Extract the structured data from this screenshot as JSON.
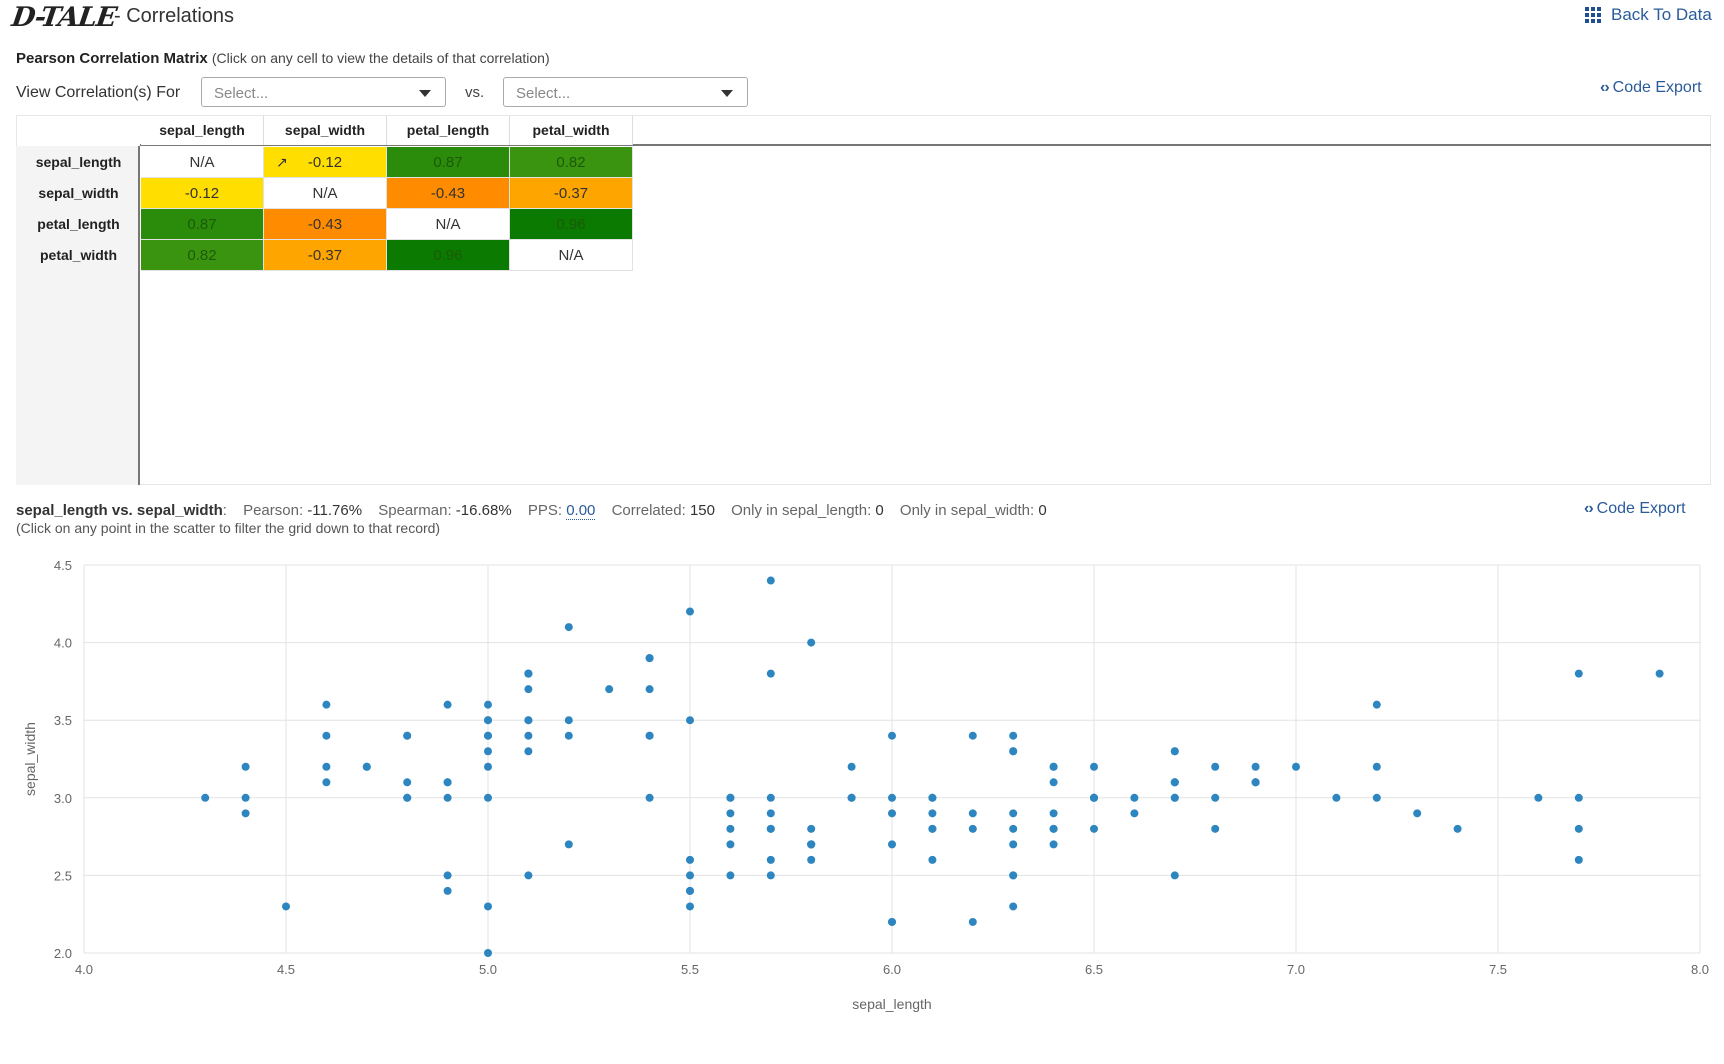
{
  "header": {
    "logo": "D-TALE",
    "title": "- Correlations",
    "back_label": "Back To Data"
  },
  "matrix_section": {
    "title": "Pearson Correlation Matrix",
    "hint": "(Click on any cell to view the details of that correlation)",
    "view_for_label": "View Correlation(s) For",
    "select1_placeholder": "Select...",
    "vs_label": "vs.",
    "select2_placeholder": "Select...",
    "code_export_label": "Code Export"
  },
  "matrix": {
    "columns": [
      "sepal_length",
      "sepal_width",
      "petal_length",
      "petal_width"
    ],
    "rows": [
      {
        "name": "sepal_length",
        "cells": [
          "N/A",
          "-0.12",
          "0.87",
          "0.82"
        ]
      },
      {
        "name": "sepal_width",
        "cells": [
          "-0.12",
          "N/A",
          "-0.43",
          "-0.37"
        ]
      },
      {
        "name": "petal_length",
        "cells": [
          "0.87",
          "-0.43",
          "N/A",
          "0.96"
        ]
      },
      {
        "name": "petal_width",
        "cells": [
          "0.82",
          "-0.37",
          "0.96",
          "N/A"
        ]
      }
    ],
    "colors": {
      "N/A": "#ffffff",
      "-0.12": "#ffde00",
      "-0.43": "#ff8c00",
      "-0.37": "#ffa500",
      "0.87": "#2a8c0a",
      "0.82": "#3b9410",
      "0.96": "#0a7a00"
    },
    "selected_trend_icon": "trend-line-icon"
  },
  "details": {
    "pair": "sepal_length vs. sepal_width",
    "pearson_label": "Pearson:",
    "pearson_value": "-11.76%",
    "spearman_label": "Spearman:",
    "spearman_value": "-16.68%",
    "pps_label": "PPS:",
    "pps_value": "0.00",
    "correlated_label": "Correlated:",
    "correlated_value": "150",
    "only_x_label": "Only in sepal_length:",
    "only_x_value": "0",
    "only_y_label": "Only in sepal_width:",
    "only_y_value": "0",
    "hint": "(Click on any point in the scatter to filter the grid down to that record)",
    "code_export_label": "Code Export"
  },
  "chart_data": {
    "type": "scatter",
    "xlabel": "sepal_length",
    "ylabel": "sepal_width",
    "xlim": [
      4.0,
      8.0
    ],
    "ylim": [
      2.0,
      4.5
    ],
    "xticks": [
      "4.0",
      "4.5",
      "5.0",
      "5.5",
      "6.0",
      "6.5",
      "7.0",
      "7.5",
      "8.0"
    ],
    "yticks": [
      "2.0",
      "2.5",
      "3.0",
      "3.5",
      "4.0",
      "4.5"
    ],
    "point_color": "#2e86c1",
    "points": [
      [
        5.1,
        3.5
      ],
      [
        4.9,
        3.0
      ],
      [
        4.7,
        3.2
      ],
      [
        4.6,
        3.1
      ],
      [
        5.0,
        3.6
      ],
      [
        5.4,
        3.9
      ],
      [
        4.6,
        3.4
      ],
      [
        5.0,
        3.4
      ],
      [
        4.4,
        2.9
      ],
      [
        4.9,
        3.1
      ],
      [
        5.4,
        3.7
      ],
      [
        4.8,
        3.4
      ],
      [
        4.8,
        3.0
      ],
      [
        4.3,
        3.0
      ],
      [
        5.8,
        4.0
      ],
      [
        5.7,
        4.4
      ],
      [
        5.4,
        3.9
      ],
      [
        5.1,
        3.5
      ],
      [
        5.7,
        3.8
      ],
      [
        5.1,
        3.8
      ],
      [
        5.4,
        3.4
      ],
      [
        5.1,
        3.7
      ],
      [
        4.6,
        3.6
      ],
      [
        5.1,
        3.3
      ],
      [
        4.8,
        3.4
      ],
      [
        5.0,
        3.0
      ],
      [
        5.0,
        3.4
      ],
      [
        5.2,
        3.5
      ],
      [
        5.2,
        3.4
      ],
      [
        4.7,
        3.2
      ],
      [
        4.8,
        3.1
      ],
      [
        5.4,
        3.4
      ],
      [
        5.2,
        4.1
      ],
      [
        5.5,
        4.2
      ],
      [
        4.9,
        3.1
      ],
      [
        5.0,
        3.2
      ],
      [
        5.5,
        3.5
      ],
      [
        4.9,
        3.6
      ],
      [
        4.4,
        3.0
      ],
      [
        5.1,
        3.4
      ],
      [
        5.0,
        3.5
      ],
      [
        4.5,
        2.3
      ],
      [
        4.4,
        3.2
      ],
      [
        5.0,
        3.5
      ],
      [
        5.1,
        3.8
      ],
      [
        4.8,
        3.0
      ],
      [
        5.1,
        3.8
      ],
      [
        4.6,
        3.2
      ],
      [
        5.3,
        3.7
      ],
      [
        5.0,
        3.3
      ],
      [
        7.0,
        3.2
      ],
      [
        6.4,
        3.2
      ],
      [
        6.9,
        3.1
      ],
      [
        5.5,
        2.3
      ],
      [
        6.5,
        2.8
      ],
      [
        5.7,
        2.8
      ],
      [
        6.3,
        3.3
      ],
      [
        4.9,
        2.4
      ],
      [
        6.6,
        2.9
      ],
      [
        5.2,
        2.7
      ],
      [
        5.0,
        2.0
      ],
      [
        5.9,
        3.0
      ],
      [
        6.0,
        2.2
      ],
      [
        6.1,
        2.9
      ],
      [
        5.6,
        2.9
      ],
      [
        6.7,
        3.1
      ],
      [
        5.6,
        3.0
      ],
      [
        5.8,
        2.7
      ],
      [
        6.2,
        2.2
      ],
      [
        5.6,
        2.5
      ],
      [
        5.9,
        3.2
      ],
      [
        6.1,
        2.8
      ],
      [
        6.3,
        2.5
      ],
      [
        6.1,
        2.8
      ],
      [
        6.4,
        2.9
      ],
      [
        6.6,
        3.0
      ],
      [
        6.8,
        2.8
      ],
      [
        6.7,
        3.0
      ],
      [
        6.0,
        2.9
      ],
      [
        5.7,
        2.6
      ],
      [
        5.5,
        2.4
      ],
      [
        5.5,
        2.4
      ],
      [
        5.8,
        2.7
      ],
      [
        6.0,
        2.7
      ],
      [
        5.4,
        3.0
      ],
      [
        6.0,
        3.4
      ],
      [
        6.7,
        3.1
      ],
      [
        6.3,
        2.3
      ],
      [
        5.6,
        3.0
      ],
      [
        5.5,
        2.5
      ],
      [
        5.5,
        2.6
      ],
      [
        6.1,
        3.0
      ],
      [
        5.8,
        2.6
      ],
      [
        5.0,
        2.3
      ],
      [
        5.6,
        2.7
      ],
      [
        5.7,
        3.0
      ],
      [
        5.7,
        2.9
      ],
      [
        6.2,
        2.9
      ],
      [
        5.1,
        2.5
      ],
      [
        5.7,
        2.8
      ],
      [
        6.3,
        3.3
      ],
      [
        5.8,
        2.7
      ],
      [
        7.1,
        3.0
      ],
      [
        6.3,
        2.9
      ],
      [
        6.5,
        3.0
      ],
      [
        7.6,
        3.0
      ],
      [
        4.9,
        2.5
      ],
      [
        7.3,
        2.9
      ],
      [
        6.7,
        2.5
      ],
      [
        7.2,
        3.6
      ],
      [
        6.5,
        3.2
      ],
      [
        6.4,
        2.7
      ],
      [
        6.8,
        3.0
      ],
      [
        5.7,
        2.5
      ],
      [
        5.8,
        2.8
      ],
      [
        6.4,
        3.2
      ],
      [
        6.5,
        3.0
      ],
      [
        7.7,
        3.8
      ],
      [
        7.7,
        2.6
      ],
      [
        6.0,
        2.2
      ],
      [
        6.9,
        3.2
      ],
      [
        5.6,
        2.8
      ],
      [
        7.7,
        2.8
      ],
      [
        6.3,
        2.7
      ],
      [
        6.7,
        3.3
      ],
      [
        7.2,
        3.2
      ],
      [
        6.2,
        2.8
      ],
      [
        6.1,
        3.0
      ],
      [
        6.4,
        2.8
      ],
      [
        7.2,
        3.0
      ],
      [
        7.4,
        2.8
      ],
      [
        7.9,
        3.8
      ],
      [
        6.4,
        2.8
      ],
      [
        6.3,
        2.8
      ],
      [
        6.1,
        2.6
      ],
      [
        7.7,
        3.0
      ],
      [
        6.3,
        3.4
      ],
      [
        6.4,
        3.1
      ],
      [
        6.0,
        3.0
      ],
      [
        6.9,
        3.1
      ],
      [
        6.7,
        3.1
      ],
      [
        6.9,
        3.1
      ],
      [
        5.8,
        2.7
      ],
      [
        6.8,
        3.2
      ],
      [
        6.7,
        3.3
      ],
      [
        6.7,
        3.0
      ],
      [
        6.3,
        2.5
      ],
      [
        6.5,
        3.0
      ],
      [
        6.2,
        3.4
      ],
      [
        5.9,
        3.0
      ]
    ]
  }
}
